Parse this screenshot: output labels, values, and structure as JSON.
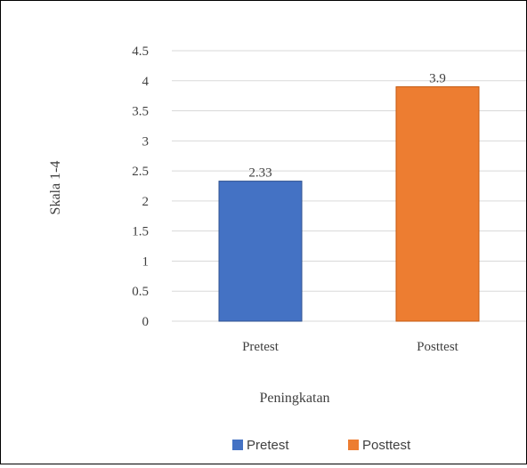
{
  "chart_data": {
    "type": "bar",
    "categories": [
      "Pretest",
      "Posttest"
    ],
    "values": [
      2.33,
      3.9
    ],
    "data_labels": [
      "2.33",
      "3.9"
    ],
    "xlabel": "Peningkatan",
    "ylabel": "Skala 1-4",
    "ylim": [
      0,
      4.5
    ],
    "ytick_labels": [
      "0",
      "0.5",
      "1",
      "1.5",
      "2",
      "2.5",
      "3",
      "3.5",
      "4",
      "4.5"
    ],
    "grid": true,
    "legend": {
      "position": "bottom",
      "entries": [
        {
          "label": "Pretest",
          "color": "#4472C4"
        },
        {
          "label": "Posttest",
          "color": "#ED7D31"
        }
      ]
    },
    "colors": [
      "#4472C4",
      "#ED7D31"
    ],
    "gridline_color": "#D9D9D9"
  }
}
